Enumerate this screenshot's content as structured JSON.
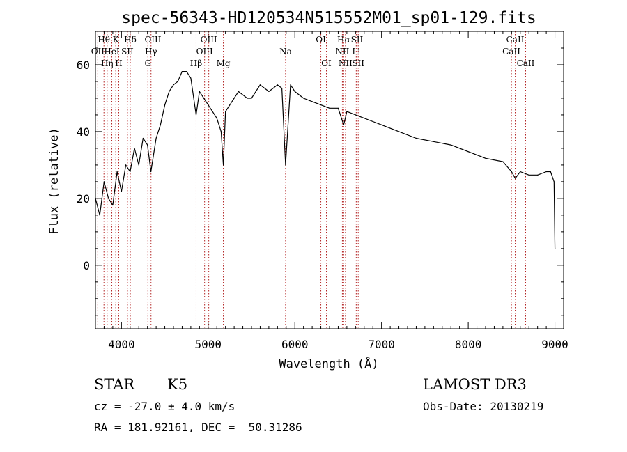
{
  "chart_data": {
    "type": "line",
    "title": "spec-56343-HD120534N515552M01_sp01-129.fits",
    "xlabel": "Wavelength (Å)",
    "ylabel": "Flux (relative)",
    "xlim": [
      3700,
      9100
    ],
    "ylim": [
      -19,
      70
    ],
    "xticks": [
      4000,
      5000,
      6000,
      7000,
      8000,
      9000
    ],
    "xtick_labels": [
      "4000",
      "5000",
      "6000",
      "7000",
      "8000",
      "9000"
    ],
    "yticks": [
      0,
      20,
      40,
      60
    ],
    "ytick_labels": [
      "0",
      "20",
      "40",
      "60"
    ],
    "grid": false,
    "series": [
      {
        "name": "spectrum",
        "color": "#000000",
        "x": [
          3700,
          3750,
          3800,
          3850,
          3900,
          3950,
          4000,
          4050,
          4100,
          4150,
          4200,
          4250,
          4300,
          4340,
          4400,
          4450,
          4500,
          4550,
          4600,
          4650,
          4700,
          4750,
          4800,
          4861,
          4900,
          4950,
          5000,
          5050,
          5100,
          5150,
          5175,
          5200,
          5250,
          5300,
          5350,
          5400,
          5450,
          5500,
          5550,
          5600,
          5650,
          5700,
          5750,
          5800,
          5850,
          5893,
          5950,
          6000,
          6100,
          6200,
          6300,
          6400,
          6500,
          6563,
          6600,
          6700,
          6800,
          6900,
          7000,
          7200,
          7400,
          7600,
          7800,
          8000,
          8200,
          8400,
          8500,
          8542,
          8600,
          8700,
          8800,
          8900,
          8950,
          8990,
          9000
        ],
        "y": [
          20,
          15,
          25,
          20,
          18,
          28,
          22,
          30,
          28,
          35,
          30,
          38,
          36,
          28,
          38,
          42,
          48,
          52,
          54,
          55,
          58,
          58,
          56,
          45,
          52,
          50,
          48,
          46,
          44,
          40,
          30,
          46,
          48,
          50,
          52,
          51,
          50,
          50,
          52,
          54,
          53,
          52,
          53,
          54,
          53,
          30,
          54,
          52,
          50,
          49,
          48,
          47,
          47,
          42,
          46,
          45,
          44,
          43,
          42,
          40,
          38,
          37,
          36,
          34,
          32,
          31,
          28,
          26,
          28,
          27,
          27,
          28,
          28,
          25,
          5
        ]
      }
    ],
    "lines": [
      {
        "name": "Hθ",
        "x": 3798
      },
      {
        "name": "OII",
        "x": 3727
      },
      {
        "name": "Hη",
        "x": 3835
      },
      {
        "name": "K",
        "x": 3934
      },
      {
        "name": "H",
        "x": 3969
      },
      {
        "name": "HeI",
        "x": 3889
      },
      {
        "name": "Hδ",
        "x": 4102
      },
      {
        "name": "SII",
        "x": 4069
      },
      {
        "name": "OIII",
        "x": 4363
      },
      {
        "name": "Hγ",
        "x": 4341
      },
      {
        "name": "G",
        "x": 4305
      },
      {
        "name": "Hβ",
        "x": 4861
      },
      {
        "name": "OIII",
        "x": 4959
      },
      {
        "name": "OIII",
        "x": 5007
      },
      {
        "name": "Mg",
        "x": 5175
      },
      {
        "name": "Na",
        "x": 5893
      },
      {
        "name": "OI",
        "x": 6300
      },
      {
        "name": "OI",
        "x": 6364
      },
      {
        "name": "NII",
        "x": 6548
      },
      {
        "name": "Hα",
        "x": 6563
      },
      {
        "name": "NII",
        "x": 6584
      },
      {
        "name": "Li",
        "x": 6708
      },
      {
        "name": "SII",
        "x": 6717
      },
      {
        "name": "SII",
        "x": 6731
      },
      {
        "name": "CaII",
        "x": 8498
      },
      {
        "name": "CaII",
        "x": 8542
      },
      {
        "name": "CaII",
        "x": 8662
      }
    ],
    "line_labels": [
      {
        "text": "Hθ",
        "x": 3798,
        "row": 1
      },
      {
        "text": "OII",
        "x": 3727,
        "row": 2
      },
      {
        "text": "Hη",
        "x": 3835,
        "row": 3
      },
      {
        "text": "K",
        "x": 3934,
        "row": 1
      },
      {
        "text": "HeI",
        "x": 3889,
        "row": 2
      },
      {
        "text": "H",
        "x": 3969,
        "row": 3
      },
      {
        "text": "Hδ",
        "x": 4102,
        "row": 1
      },
      {
        "text": "SII",
        "x": 4069,
        "row": 2
      },
      {
        "text": "OIII",
        "x": 4363,
        "row": 1
      },
      {
        "text": "Hγ",
        "x": 4341,
        "row": 2
      },
      {
        "text": "G",
        "x": 4305,
        "row": 3
      },
      {
        "text": "Hβ",
        "x": 4861,
        "row": 3
      },
      {
        "text": "OIII",
        "x": 5007,
        "row": 1
      },
      {
        "text": "OIII",
        "x": 4959,
        "row": 2
      },
      {
        "text": "Mg",
        "x": 5175,
        "row": 3
      },
      {
        "text": "Na",
        "x": 5893,
        "row": 2
      },
      {
        "text": "OI",
        "x": 6300,
        "row": 1
      },
      {
        "text": "OI",
        "x": 6364,
        "row": 3
      },
      {
        "text": "Hα",
        "x": 6563,
        "row": 1
      },
      {
        "text": "SII",
        "x": 6717,
        "row": 1
      },
      {
        "text": "NII",
        "x": 6548,
        "row": 2
      },
      {
        "text": "Li",
        "x": 6708,
        "row": 2
      },
      {
        "text": "NII",
        "x": 6584,
        "row": 3
      },
      {
        "text": "SII",
        "x": 6731,
        "row": 3
      },
      {
        "text": "CaII",
        "x": 8542,
        "row": 1
      },
      {
        "text": "CaII",
        "x": 8498,
        "row": 2
      },
      {
        "text": "CaII",
        "x": 8662,
        "row": 3
      }
    ]
  },
  "info": {
    "object_class": "STAR",
    "subclass": "K5",
    "cz": "cz = -27.0 ± 4.0 km/s",
    "coords": "RA = 181.92161, DEC =  50.31286",
    "survey": "LAMOST DR3",
    "obs_date": "Obs-Date: 20130219"
  },
  "colors": {
    "line_marker": "#b22222",
    "spectrum": "#000000"
  }
}
